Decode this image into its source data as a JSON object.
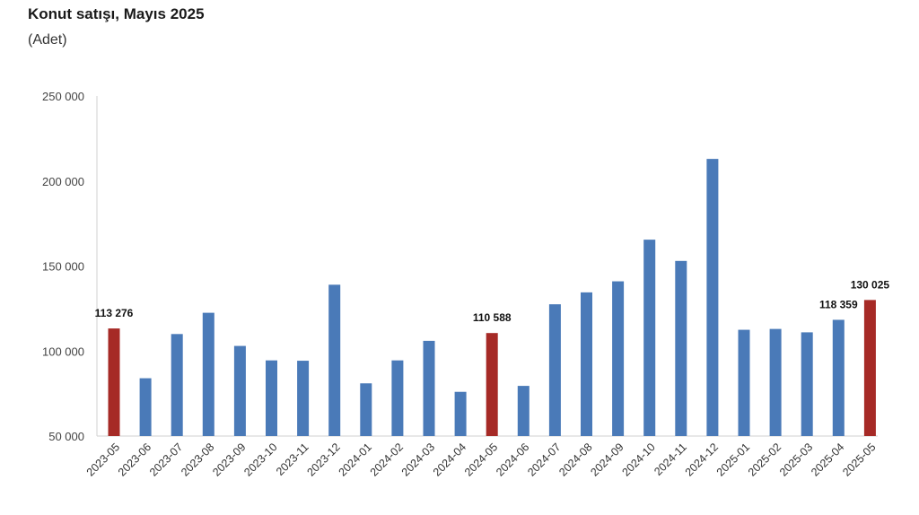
{
  "chart_data": {
    "type": "bar",
    "title": "Konut satışı, Mayıs 2025",
    "subtitle": "(Adet)",
    "xlabel": "",
    "ylabel": "",
    "ylim": [
      50000,
      250000
    ],
    "yticks": [
      50000,
      100000,
      150000,
      200000,
      250000
    ],
    "ytick_labels": [
      "50 000",
      "100 000",
      "150 000",
      "200 000",
      "250 000"
    ],
    "grid": false,
    "categories": [
      "2023-05",
      "2023-06",
      "2023-07",
      "2023-08",
      "2023-09",
      "2023-10",
      "2023-11",
      "2023-12",
      "2024-01",
      "2024-02",
      "2024-03",
      "2024-04",
      "2024-05",
      "2024-06",
      "2024-07",
      "2024-08",
      "2024-09",
      "2024-10",
      "2024-11",
      "2024-12",
      "2025-01",
      "2025-02",
      "2025-03",
      "2025-04",
      "2025-05"
    ],
    "values": [
      113276,
      84000,
      110000,
      122500,
      103000,
      94500,
      94300,
      139000,
      81000,
      94500,
      106000,
      76000,
      110588,
      79500,
      127500,
      134500,
      141000,
      165500,
      153000,
      213000,
      112500,
      113000,
      111000,
      118359,
      130025
    ],
    "highlight": [
      true,
      false,
      false,
      false,
      false,
      false,
      false,
      false,
      false,
      false,
      false,
      false,
      true,
      false,
      false,
      false,
      false,
      false,
      false,
      false,
      false,
      false,
      false,
      false,
      true
    ],
    "data_labels": [
      {
        "index": 0,
        "text": "113 276"
      },
      {
        "index": 12,
        "text": "110 588"
      },
      {
        "index": 23,
        "text": "118 359"
      },
      {
        "index": 24,
        "text": "130 025"
      }
    ],
    "colors": {
      "default": "#4a7ab8",
      "highlight": "#a62a26",
      "axis": "#d0d0d0"
    }
  }
}
